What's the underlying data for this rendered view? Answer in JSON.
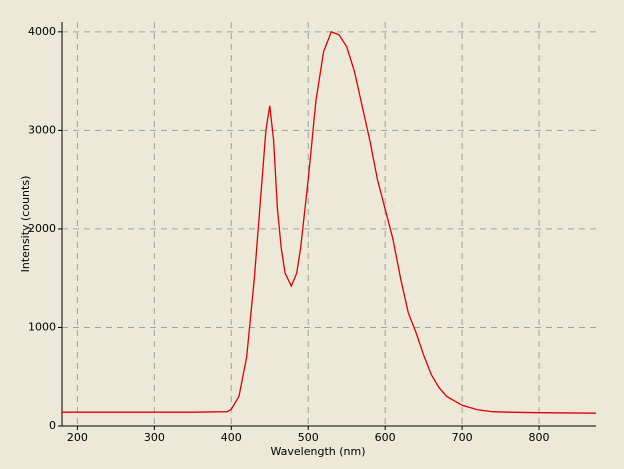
{
  "chart_data": {
    "type": "line",
    "x_label": "Wavelength (nm)",
    "y_label": "Intensity (counts)",
    "x": [
      180,
      250,
      300,
      350,
      395,
      400,
      410,
      420,
      430,
      440,
      445,
      450,
      455,
      460,
      465,
      470,
      478,
      485,
      490,
      500,
      510,
      520,
      530,
      540,
      550,
      560,
      570,
      580,
      590,
      600,
      610,
      620,
      630,
      640,
      650,
      660,
      670,
      680,
      700,
      720,
      740,
      760,
      800,
      874
    ],
    "series": [
      {
        "name": "Intensity",
        "color": "#e00000",
        "values": [
          140,
          140,
          140,
          140,
          145,
          170,
          300,
          700,
          1500,
          2500,
          3000,
          3250,
          2900,
          2200,
          1800,
          1550,
          1420,
          1550,
          1800,
          2500,
          3300,
          3800,
          4000,
          3970,
          3850,
          3600,
          3250,
          2900,
          2500,
          2200,
          1900,
          1500,
          1150,
          950,
          720,
          520,
          390,
          300,
          210,
          165,
          145,
          140,
          135,
          130
        ]
      }
    ],
    "xlim": [
      180,
      874
    ],
    "ylim": [
      0,
      4100
    ],
    "xticks": [
      200,
      300,
      400,
      500,
      600,
      700,
      800
    ],
    "yticks": [
      0,
      1000,
      2000,
      3000,
      4000
    ],
    "grid": true
  }
}
